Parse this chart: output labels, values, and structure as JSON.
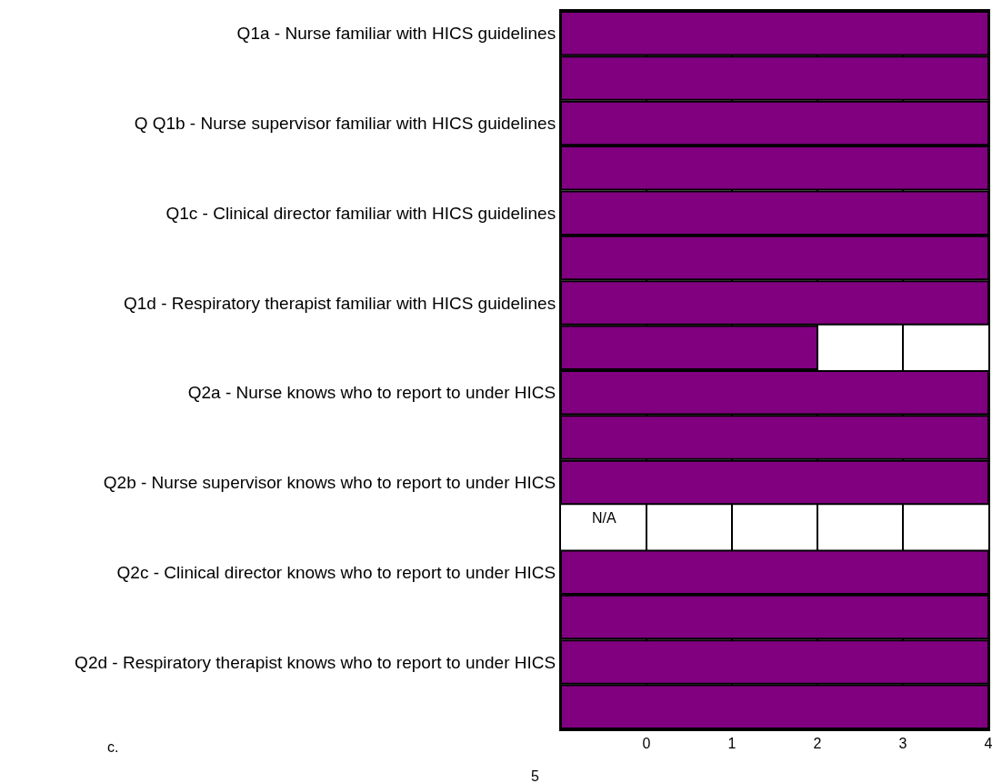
{
  "chart_data": {
    "type": "bar",
    "orientation": "horizontal",
    "categories": [
      "Q1a - Nurse familiar with HICS guidelines",
      null,
      "Q Q1b - Nurse supervisor familiar with HICS guidelines",
      null,
      "Q1c - Clinical director familiar with HICS guidelines",
      null,
      "Q1d - Respiratory therapist familiar with HICS guidelines",
      null,
      "Q2a - Nurse knows who to report to under HICS",
      null,
      "Q2b - Nurse supervisor knows who to report to under HICS",
      null,
      "Q2c - Clinical director knows who to report to under HICS",
      null,
      "Q2d - Respiratory therapist knows who to report to under HICS",
      null
    ],
    "values": [
      5,
      5,
      5,
      5,
      5,
      5,
      5,
      3,
      5,
      5,
      5,
      null,
      5,
      5,
      5,
      5
    ],
    "base": [
      -1,
      -1,
      -1,
      -1,
      -1,
      -1,
      -1,
      -1,
      -1,
      -1,
      -1,
      null,
      -1,
      -1,
      -1,
      -1
    ],
    "color": "#800080",
    "xlim": [
      -1,
      4
    ],
    "xticks": [
      0,
      1,
      2,
      3,
      4
    ],
    "grid": "x",
    "annotations": [
      "N/A",
      "c.",
      "5"
    ]
  }
}
